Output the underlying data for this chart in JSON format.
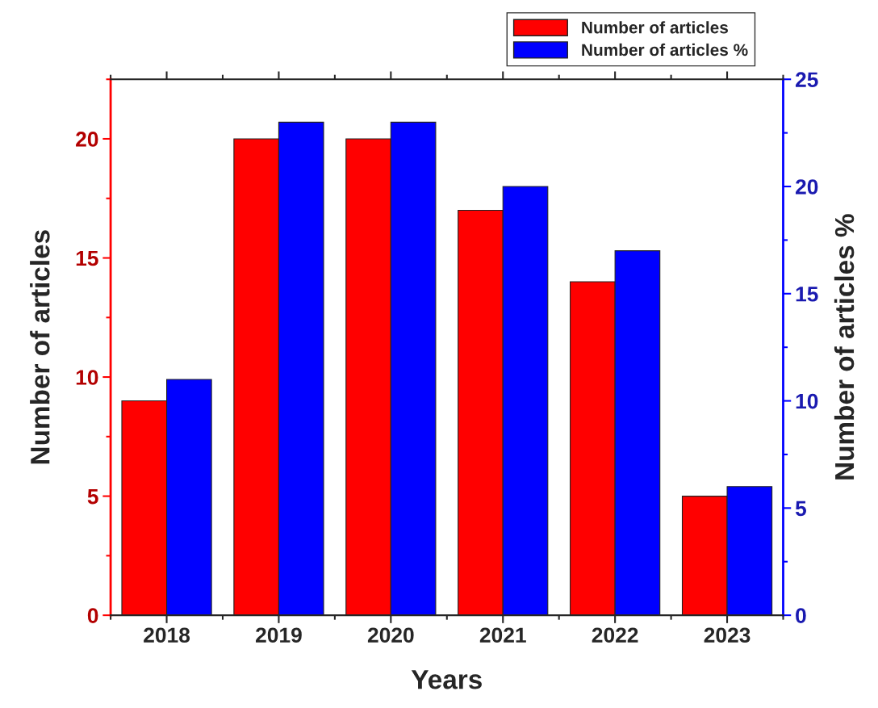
{
  "chart_data": {
    "type": "bar",
    "xlabel": "Years",
    "ylabel": "Number of articles",
    "y2label": "Number of articles %",
    "categories": [
      "2018",
      "2019",
      "2020",
      "2021",
      "2022",
      "2023"
    ],
    "series": [
      {
        "name": "Number of articles",
        "color": "#ff0000",
        "values": [
          9,
          20,
          20,
          17,
          14,
          5
        ]
      },
      {
        "name": "Number of articles %",
        "color": "#0000ff",
        "axis": "y2",
        "values": [
          11,
          23,
          23,
          20,
          17,
          6
        ]
      }
    ],
    "ylim": [
      0,
      22.5
    ],
    "yticks": [
      0,
      5,
      10,
      15,
      20
    ],
    "y2lim": [
      0,
      25
    ],
    "y2ticks": [
      0,
      5,
      10,
      15,
      20,
      25
    ],
    "grid": false,
    "legend": "top right"
  }
}
